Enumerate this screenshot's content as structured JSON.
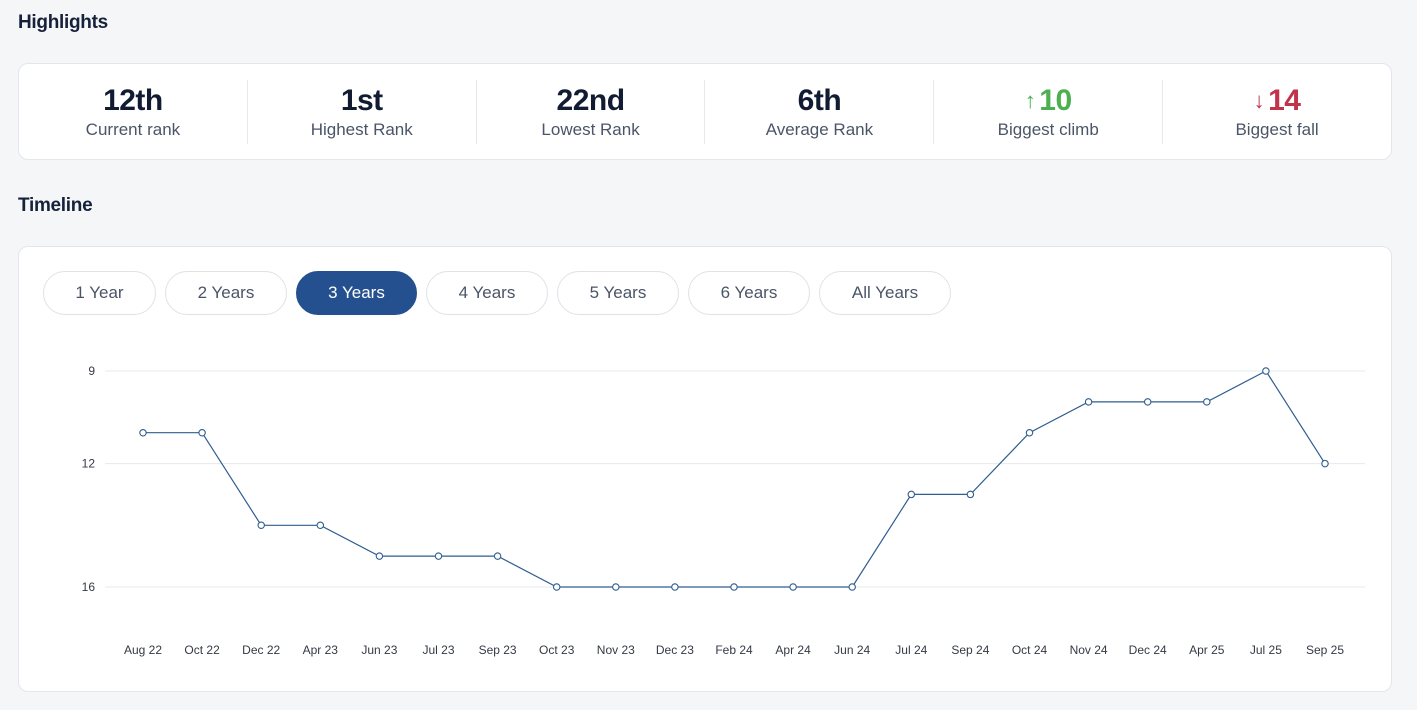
{
  "highlights": {
    "title": "Highlights",
    "stats": [
      {
        "value": "12th",
        "label": "Current rank",
        "trend": ""
      },
      {
        "value": "1st",
        "label": "Highest Rank",
        "trend": ""
      },
      {
        "value": "22nd",
        "label": "Lowest Rank",
        "trend": ""
      },
      {
        "value": "6th",
        "label": "Average Rank",
        "trend": ""
      },
      {
        "value": "10",
        "label": "Biggest climb",
        "trend": "up",
        "arrow": "↑"
      },
      {
        "value": "14",
        "label": "Biggest fall",
        "trend": "down",
        "arrow": "↓"
      }
    ],
    "colors": {
      "up": "#4caf50",
      "down": "#c0334a"
    }
  },
  "timeline": {
    "title": "Timeline",
    "tabs": [
      "1 Year",
      "2 Years",
      "3 Years",
      "4 Years",
      "5 Years",
      "6 Years",
      "All Years"
    ],
    "active_tab": "3 Years",
    "accent": "#24508f"
  },
  "chart_data": {
    "type": "line",
    "title": "",
    "xlabel": "",
    "ylabel": "",
    "categories": [
      "Aug 22",
      "Oct 22",
      "Dec 22",
      "Apr 23",
      "Jun 23",
      "Jul 23",
      "Sep 23",
      "Oct 23",
      "Nov 23",
      "Dec 23",
      "Feb 24",
      "Apr 24",
      "Jun 24",
      "Jul 24",
      "Sep 24",
      "Oct 24",
      "Nov 24",
      "Dec 24",
      "Apr 25",
      "Jul 25",
      "Sep 25"
    ],
    "values": [
      11,
      11,
      14,
      14,
      15,
      15,
      15,
      16,
      16,
      16,
      16,
      16,
      16,
      13,
      13,
      11,
      10,
      10,
      10,
      9,
      12
    ],
    "y_ticks": [
      9,
      12,
      16
    ],
    "ylim": [
      9,
      16
    ],
    "y_inverted": true,
    "grid": true,
    "line_color": "#2f5d8f"
  }
}
